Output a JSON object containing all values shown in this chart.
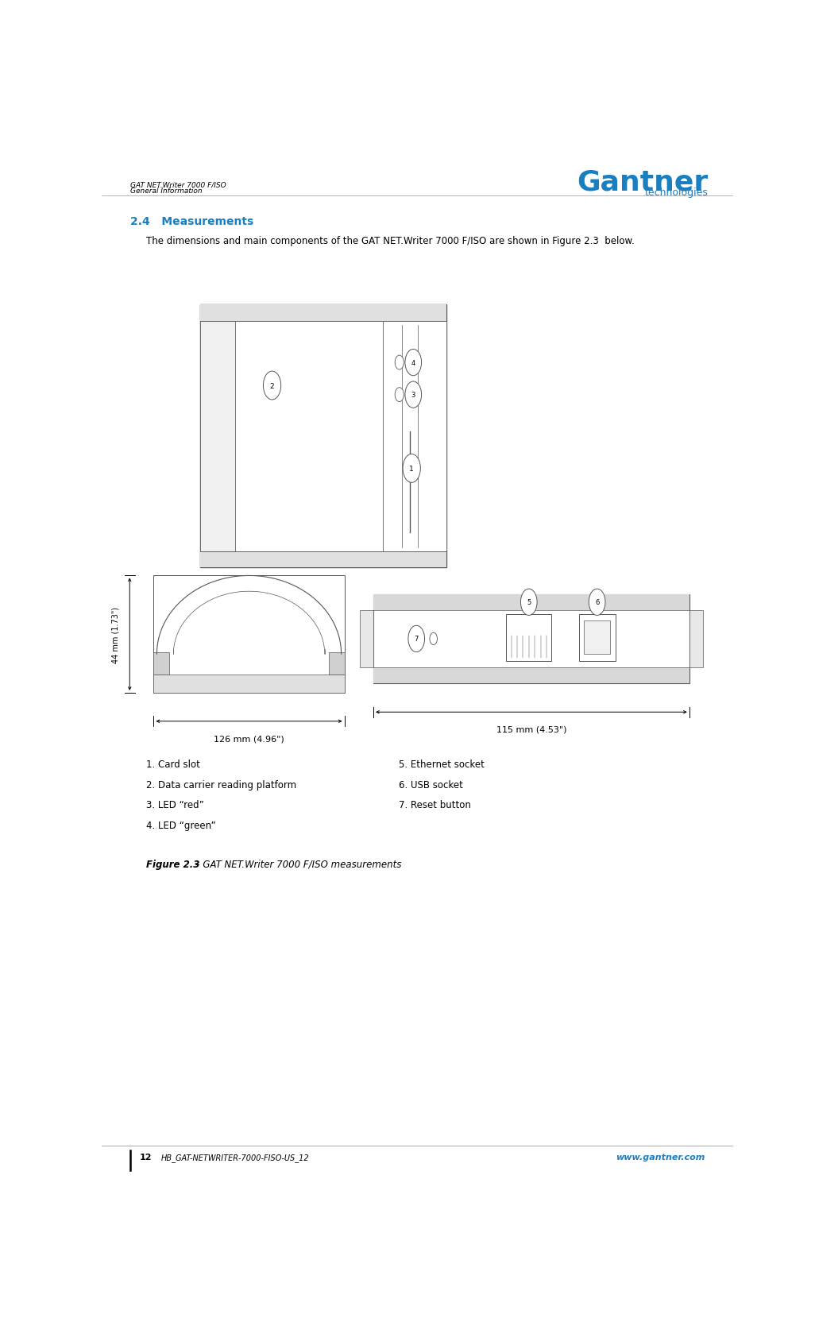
{
  "page_width": 10.26,
  "page_height": 16.65,
  "bg_color": "#ffffff",
  "header_left_line1": "GAT NET.Writer 7000 F/ISO",
  "header_left_line2": "General Information",
  "header_right_logo_big": "Gantner",
  "header_right_logo_small": "technologies",
  "logo_color": "#1a7fc1",
  "section_title": "2.4   Measurements",
  "section_title_color": "#1a7fc1",
  "body_text": "The dimensions and main components of the GAT NET.Writer 7000 F/ISO are shown in Figure 2.3  below.",
  "legend_col1": [
    "1. Card slot",
    "2. Data carrier reading platform",
    "3. LED “red”",
    "4. LED “green”"
  ],
  "legend_col2": [
    "5. Ethernet socket",
    "6. USB socket",
    "7. Reset button"
  ],
  "figure_caption_bold": "Figure 2.3",
  "figure_caption_rest": " – GAT NET.Writer 7000 F/ISO measurements",
  "footer_left_num": "12",
  "footer_left_text": "HB_GAT-NETWRITER-7000-FISO-US_12",
  "footer_right": "www.gantner.com",
  "draw_color": "#555555",
  "dim_label_126": "126 mm (4.96\")",
  "dim_label_115": "115 mm (4.53\")",
  "dim_label_44": "44 mm (1.73\")"
}
